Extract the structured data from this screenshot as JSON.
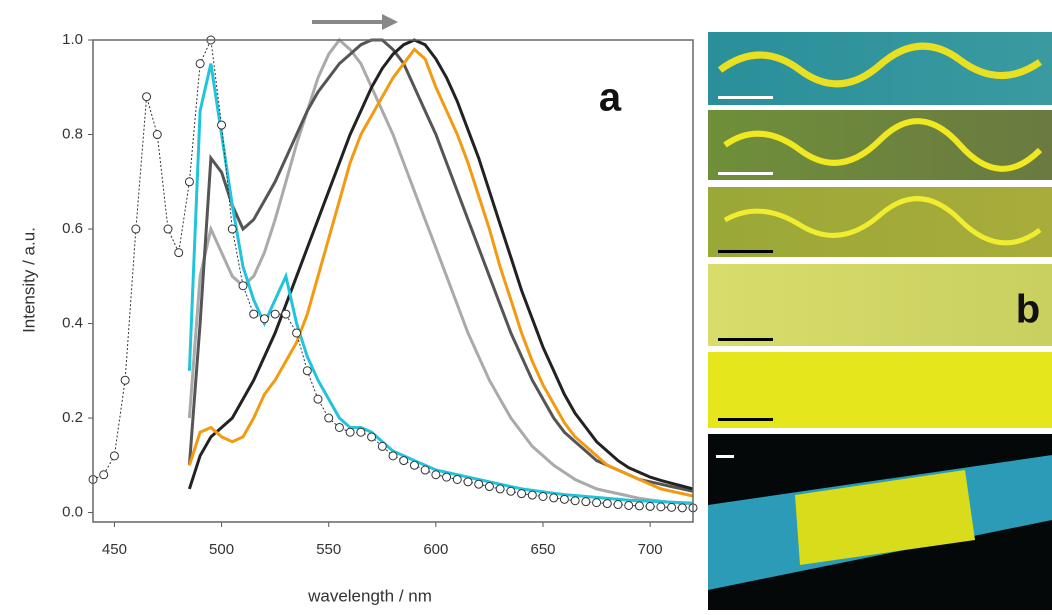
{
  "chart_data": {
    "type": "line",
    "xlabel": "wavelength / nm",
    "ylabel": "Intensity / a.u.",
    "annotation": "a",
    "xlim": [
      440,
      720
    ],
    "ylim": [
      -0.02,
      1.0
    ],
    "xticks": [
      450,
      500,
      550,
      600,
      650,
      700
    ],
    "yticks": [
      {
        "value": 0,
        "label": "0.0"
      },
      0.2,
      0.4,
      0.6,
      0.8,
      {
        "value": 1,
        "label": "1.0"
      }
    ],
    "x": [
      440,
      445,
      450,
      455,
      460,
      465,
      470,
      475,
      480,
      485,
      490,
      495,
      500,
      505,
      510,
      515,
      520,
      525,
      530,
      535,
      540,
      545,
      550,
      555,
      560,
      565,
      570,
      575,
      580,
      585,
      590,
      595,
      600,
      605,
      610,
      615,
      620,
      625,
      630,
      635,
      640,
      645,
      650,
      655,
      660,
      665,
      670,
      675,
      680,
      685,
      690,
      695,
      700,
      705,
      710,
      715,
      720
    ],
    "series": [
      {
        "color": "#aaaaaa",
        "values": [
          null,
          null,
          null,
          null,
          null,
          null,
          null,
          null,
          null,
          0.2,
          0.5,
          0.6,
          0.55,
          0.5,
          0.48,
          0.5,
          0.55,
          0.62,
          0.7,
          0.78,
          0.85,
          0.92,
          0.97,
          1.0,
          0.98,
          0.95,
          0.9,
          0.85,
          0.8,
          0.74,
          0.68,
          0.62,
          0.56,
          0.5,
          0.44,
          0.38,
          0.33,
          0.28,
          0.24,
          0.2,
          0.17,
          0.14,
          0.12,
          0.1,
          0.085,
          0.07,
          0.06,
          0.05,
          0.045,
          0.04,
          0.035,
          0.03,
          0.027,
          0.024,
          0.022,
          0.02,
          0.018
        ]
      },
      {
        "color": "#555555",
        "values": [
          null,
          null,
          null,
          null,
          null,
          null,
          null,
          null,
          null,
          0.1,
          0.4,
          0.75,
          0.72,
          0.65,
          0.6,
          0.62,
          0.66,
          0.7,
          0.75,
          0.8,
          0.85,
          0.89,
          0.92,
          0.95,
          0.97,
          0.99,
          1.0,
          1.0,
          0.98,
          0.95,
          0.9,
          0.85,
          0.8,
          0.74,
          0.68,
          0.62,
          0.56,
          0.5,
          0.44,
          0.38,
          0.33,
          0.28,
          0.24,
          0.2,
          0.17,
          0.15,
          0.13,
          0.11,
          0.1,
          0.09,
          0.08,
          0.07,
          0.065,
          0.06,
          0.055,
          0.05,
          0.045
        ]
      },
      {
        "color": "#222222",
        "values": [
          null,
          null,
          null,
          null,
          null,
          null,
          null,
          null,
          null,
          0.05,
          0.12,
          0.16,
          0.18,
          0.2,
          0.24,
          0.28,
          0.33,
          0.38,
          0.44,
          0.5,
          0.56,
          0.62,
          0.68,
          0.74,
          0.8,
          0.85,
          0.9,
          0.94,
          0.97,
          0.99,
          1.0,
          0.99,
          0.96,
          0.92,
          0.87,
          0.81,
          0.75,
          0.68,
          0.61,
          0.54,
          0.47,
          0.41,
          0.35,
          0.3,
          0.25,
          0.21,
          0.18,
          0.15,
          0.13,
          0.11,
          0.095,
          0.085,
          0.075,
          0.068,
          0.062,
          0.056,
          0.05
        ]
      },
      {
        "color": "#22c4dc",
        "values": [
          null,
          null,
          null,
          null,
          null,
          null,
          null,
          null,
          null,
          0.3,
          0.85,
          0.95,
          0.8,
          0.65,
          0.52,
          0.45,
          0.4,
          0.45,
          0.5,
          0.4,
          0.33,
          0.28,
          0.24,
          0.2,
          0.18,
          0.18,
          0.17,
          0.15,
          0.13,
          0.12,
          0.11,
          0.1,
          0.09,
          0.085,
          0.08,
          0.075,
          0.07,
          0.065,
          0.06,
          0.055,
          0.05,
          0.047,
          0.044,
          0.041,
          0.038,
          0.036,
          0.034,
          0.032,
          0.03,
          0.028,
          0.026,
          0.025,
          0.024,
          0.023,
          0.022,
          0.021,
          0.02
        ]
      },
      {
        "color": "#f39a12",
        "values": [
          null,
          null,
          null,
          null,
          null,
          null,
          null,
          null,
          null,
          0.1,
          0.17,
          0.18,
          0.16,
          0.15,
          0.16,
          0.2,
          0.25,
          0.28,
          0.32,
          0.36,
          0.42,
          0.5,
          0.58,
          0.66,
          0.74,
          0.8,
          0.84,
          0.88,
          0.92,
          0.95,
          0.98,
          0.96,
          0.9,
          0.85,
          0.8,
          0.74,
          0.67,
          0.6,
          0.52,
          0.45,
          0.38,
          0.32,
          0.27,
          0.23,
          0.19,
          0.16,
          0.14,
          0.12,
          0.1,
          0.09,
          0.08,
          0.07,
          0.06,
          0.05,
          0.045,
          0.04,
          0.035
        ]
      },
      {
        "color": "#333333",
        "marker": "circle",
        "values": [
          0.07,
          0.08,
          0.12,
          0.28,
          0.6,
          0.88,
          0.8,
          0.6,
          0.55,
          0.7,
          0.95,
          1.0,
          0.82,
          0.6,
          0.48,
          0.42,
          0.41,
          0.42,
          0.42,
          0.38,
          0.3,
          0.24,
          0.2,
          0.18,
          0.17,
          0.17,
          0.16,
          0.14,
          0.12,
          0.11,
          0.1,
          0.09,
          0.08,
          0.075,
          0.07,
          0.065,
          0.06,
          0.055,
          0.05,
          0.045,
          0.04,
          0.037,
          0.034,
          0.031,
          0.028,
          0.025,
          0.023,
          0.021,
          0.019,
          0.017,
          0.015,
          0.014,
          0.013,
          0.012,
          0.011,
          0.01,
          0.01
        ]
      }
    ]
  },
  "panel_b": {
    "label": "b"
  }
}
